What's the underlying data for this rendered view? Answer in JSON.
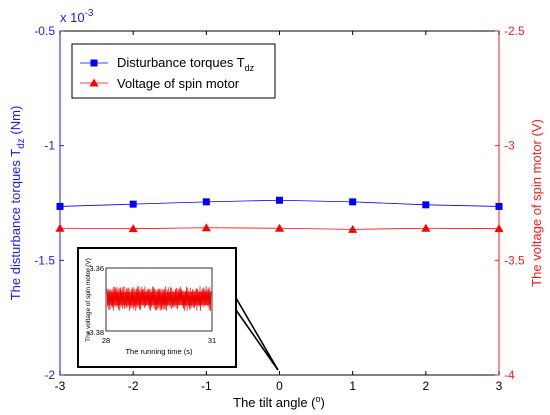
{
  "chart_data": {
    "type": "line",
    "x": [
      -3,
      -2,
      -1,
      0,
      1,
      2,
      3
    ],
    "xlabel": "The tilt angle (",
    "xlabel_degree": "o",
    "xlabel_close": ")",
    "xlim": [
      -3,
      3
    ],
    "xticks": [
      "-3",
      "-2",
      "-1",
      "0",
      "1",
      "2",
      "3"
    ],
    "left_axis": {
      "label": "The disturbance torques T",
      "label_sub": "dz",
      "label_unit": " (Nm)",
      "exponent_label": "x 10",
      "exponent_power": "-3",
      "ylim": [
        -2,
        -0.5
      ],
      "ticks": [
        "-0.5",
        "-1",
        "-1.5",
        "-2"
      ],
      "color": "#1a1aff"
    },
    "right_axis": {
      "label": "The voltage of spin motor (V)",
      "ylim": [
        -4,
        -2.5
      ],
      "ticks": [
        "-2.5",
        "-3",
        "-3.5",
        "-4"
      ],
      "color": "#ff1a1a"
    },
    "series": [
      {
        "name": "Disturbance torques T",
        "name_sub": "dz",
        "axis": "left",
        "marker": "square",
        "color": "#0000ff",
        "values": [
          -1.265,
          -1.255,
          -1.245,
          -1.238,
          -1.245,
          -1.258,
          -1.265
        ]
      },
      {
        "name": "Voltage of spin motor",
        "axis": "right",
        "marker": "triangle",
        "color": "#ff0000",
        "values": [
          -3.36,
          -3.362,
          -3.358,
          -3.36,
          -3.365,
          -3.36,
          -3.362
        ]
      }
    ],
    "legend_position": "top-left",
    "grid": false,
    "inset": {
      "xlabel": "The running time (s)",
      "ylabel": "The voltage of spin motor (V)",
      "xticks": [
        "28",
        "31"
      ],
      "yticks": [
        "-3.36",
        "-3.38"
      ],
      "points_to_x": 0
    }
  }
}
